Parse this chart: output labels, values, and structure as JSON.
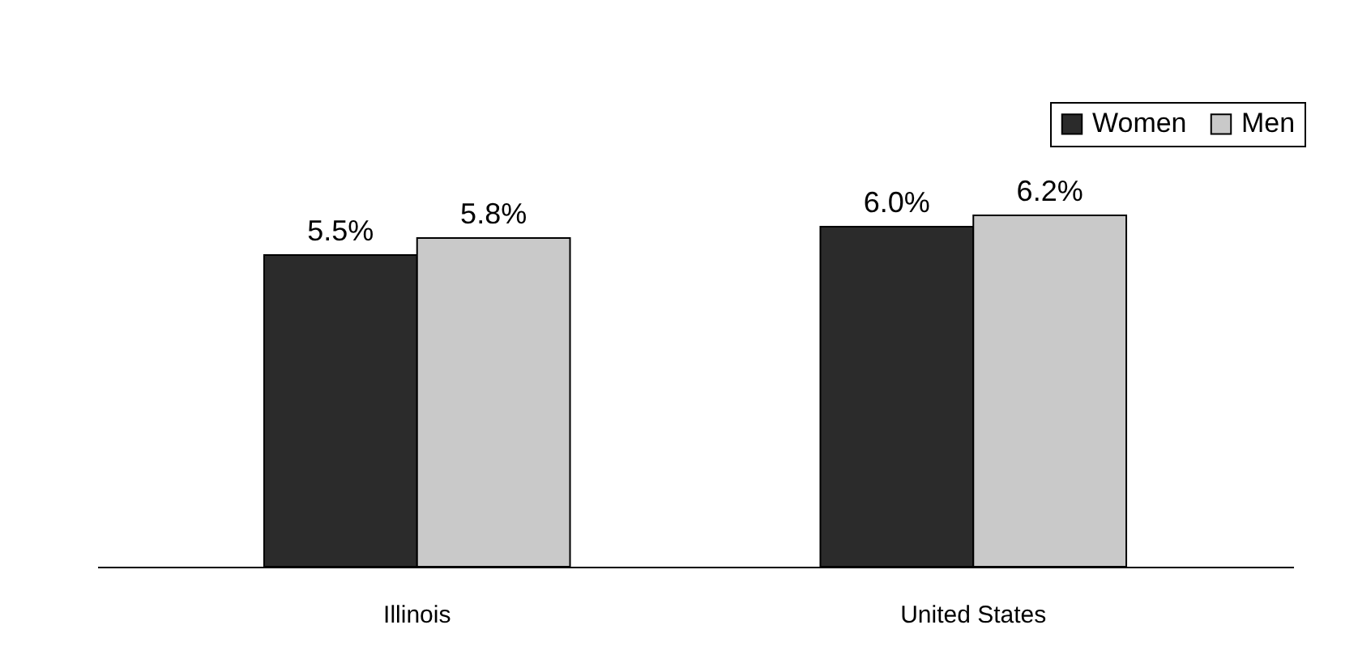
{
  "chart_data": {
    "type": "bar",
    "categories": [
      "Illinois",
      "United States"
    ],
    "series": [
      {
        "name": "Women",
        "color": "#2b2b2b",
        "values": [
          5.5,
          6.0
        ],
        "value_labels": [
          "5.5%",
          "6.0%"
        ]
      },
      {
        "name": "Men",
        "color": "#c9c9c9",
        "values": [
          5.8,
          6.2
        ],
        "value_labels": [
          "5.8%",
          "6.2%"
        ]
      }
    ],
    "legend": "top right"
  }
}
